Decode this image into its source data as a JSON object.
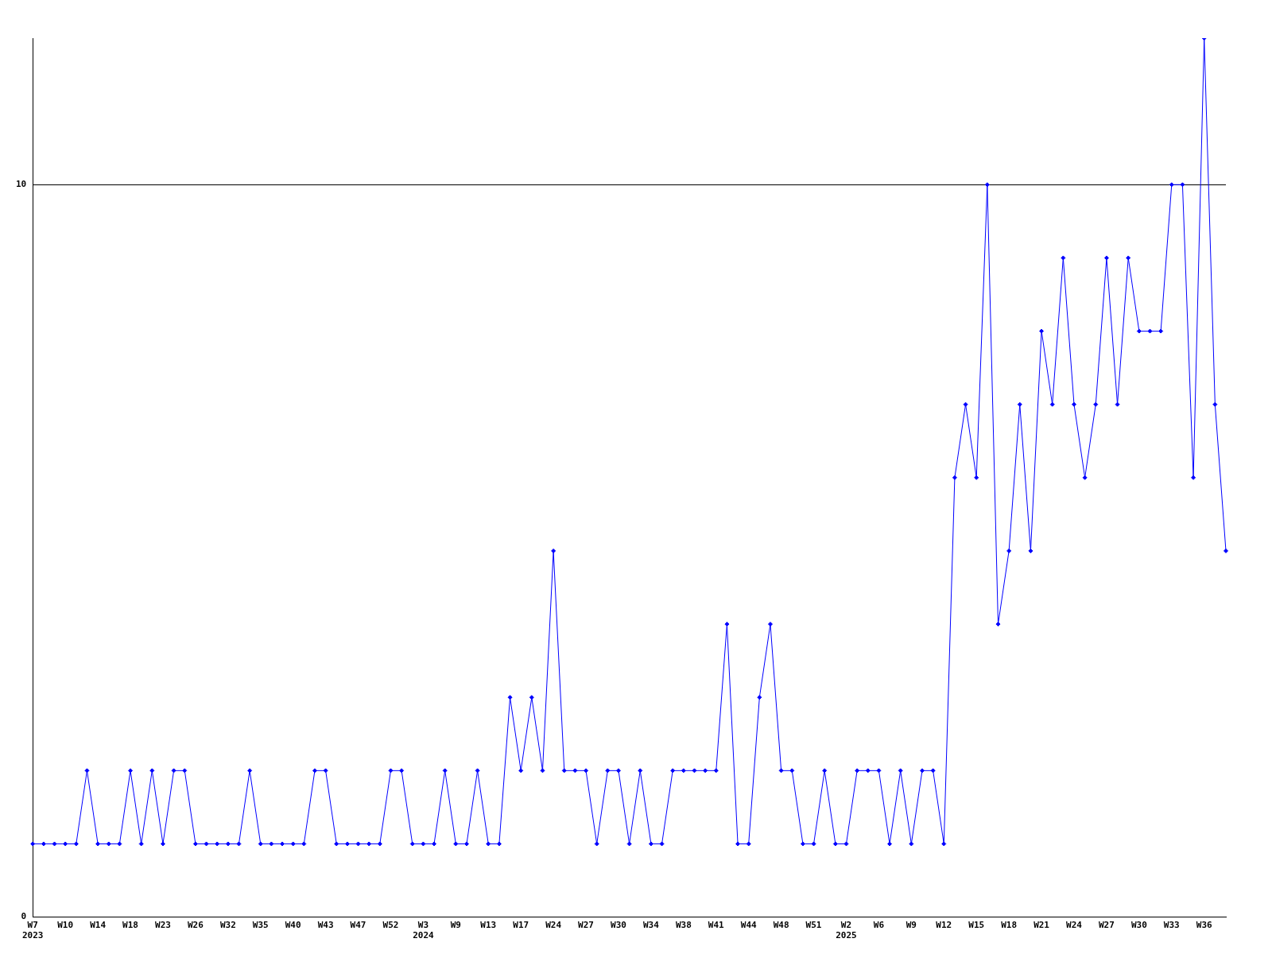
{
  "chart_data": {
    "type": "line",
    "categories": [
      "W7\n2023",
      null,
      null,
      "W10",
      null,
      null,
      "W14",
      null,
      null,
      "W18",
      null,
      null,
      "W23",
      null,
      null,
      "W26",
      null,
      null,
      "W32",
      null,
      null,
      "W35",
      null,
      null,
      "W40",
      null,
      null,
      "W43",
      null,
      null,
      "W47",
      null,
      null,
      "W52",
      null,
      null,
      "W3\n2024",
      null,
      null,
      "W9",
      null,
      null,
      "W13",
      null,
      null,
      "W17",
      null,
      null,
      "W24",
      null,
      null,
      "W27",
      null,
      null,
      "W30",
      null,
      null,
      "W34",
      null,
      null,
      "W38",
      null,
      null,
      "W41",
      null,
      null,
      "W44",
      null,
      null,
      "W48",
      null,
      null,
      "W51",
      null,
      null,
      "W2\n2025",
      null,
      null,
      "W6",
      null,
      null,
      "W9",
      null,
      null,
      "W12",
      null,
      null,
      "W15",
      null,
      null,
      "W18",
      null,
      null,
      "W21",
      null,
      null,
      "W24",
      null,
      null,
      "W27",
      null,
      null,
      "W30",
      null,
      null,
      "W33",
      null,
      null,
      "W36",
      null,
      null
    ],
    "series": [
      {
        "color": "#0000ff",
        "values": [
          1,
          1,
          1,
          1,
          1,
          2,
          1,
          1,
          1,
          2,
          1,
          2,
          1,
          2,
          2,
          1,
          1,
          1,
          1,
          1,
          2,
          1,
          1,
          1,
          1,
          1,
          2,
          2,
          1,
          1,
          1,
          1,
          1,
          2,
          2,
          1,
          1,
          1,
          2,
          1,
          1,
          2,
          1,
          1,
          3,
          2,
          3,
          2,
          5,
          2,
          2,
          2,
          1,
          2,
          2,
          1,
          2,
          1,
          1,
          2,
          2,
          2,
          2,
          2,
          4,
          1,
          1,
          3,
          4,
          2,
          2,
          1,
          1,
          2,
          1,
          1,
          2,
          2,
          2,
          1,
          2,
          1,
          2,
          2,
          1,
          6,
          7,
          6,
          10,
          4,
          5,
          7,
          5,
          8,
          7,
          9,
          7,
          6,
          7,
          9,
          7,
          9,
          8,
          8,
          8,
          10,
          10,
          6,
          12,
          7,
          5
        ]
      }
    ],
    "ylim": [
      0,
      12
    ],
    "yticks": [
      0,
      10
    ],
    "grid": "y",
    "marker": "diamond",
    "line_style": "solid"
  }
}
